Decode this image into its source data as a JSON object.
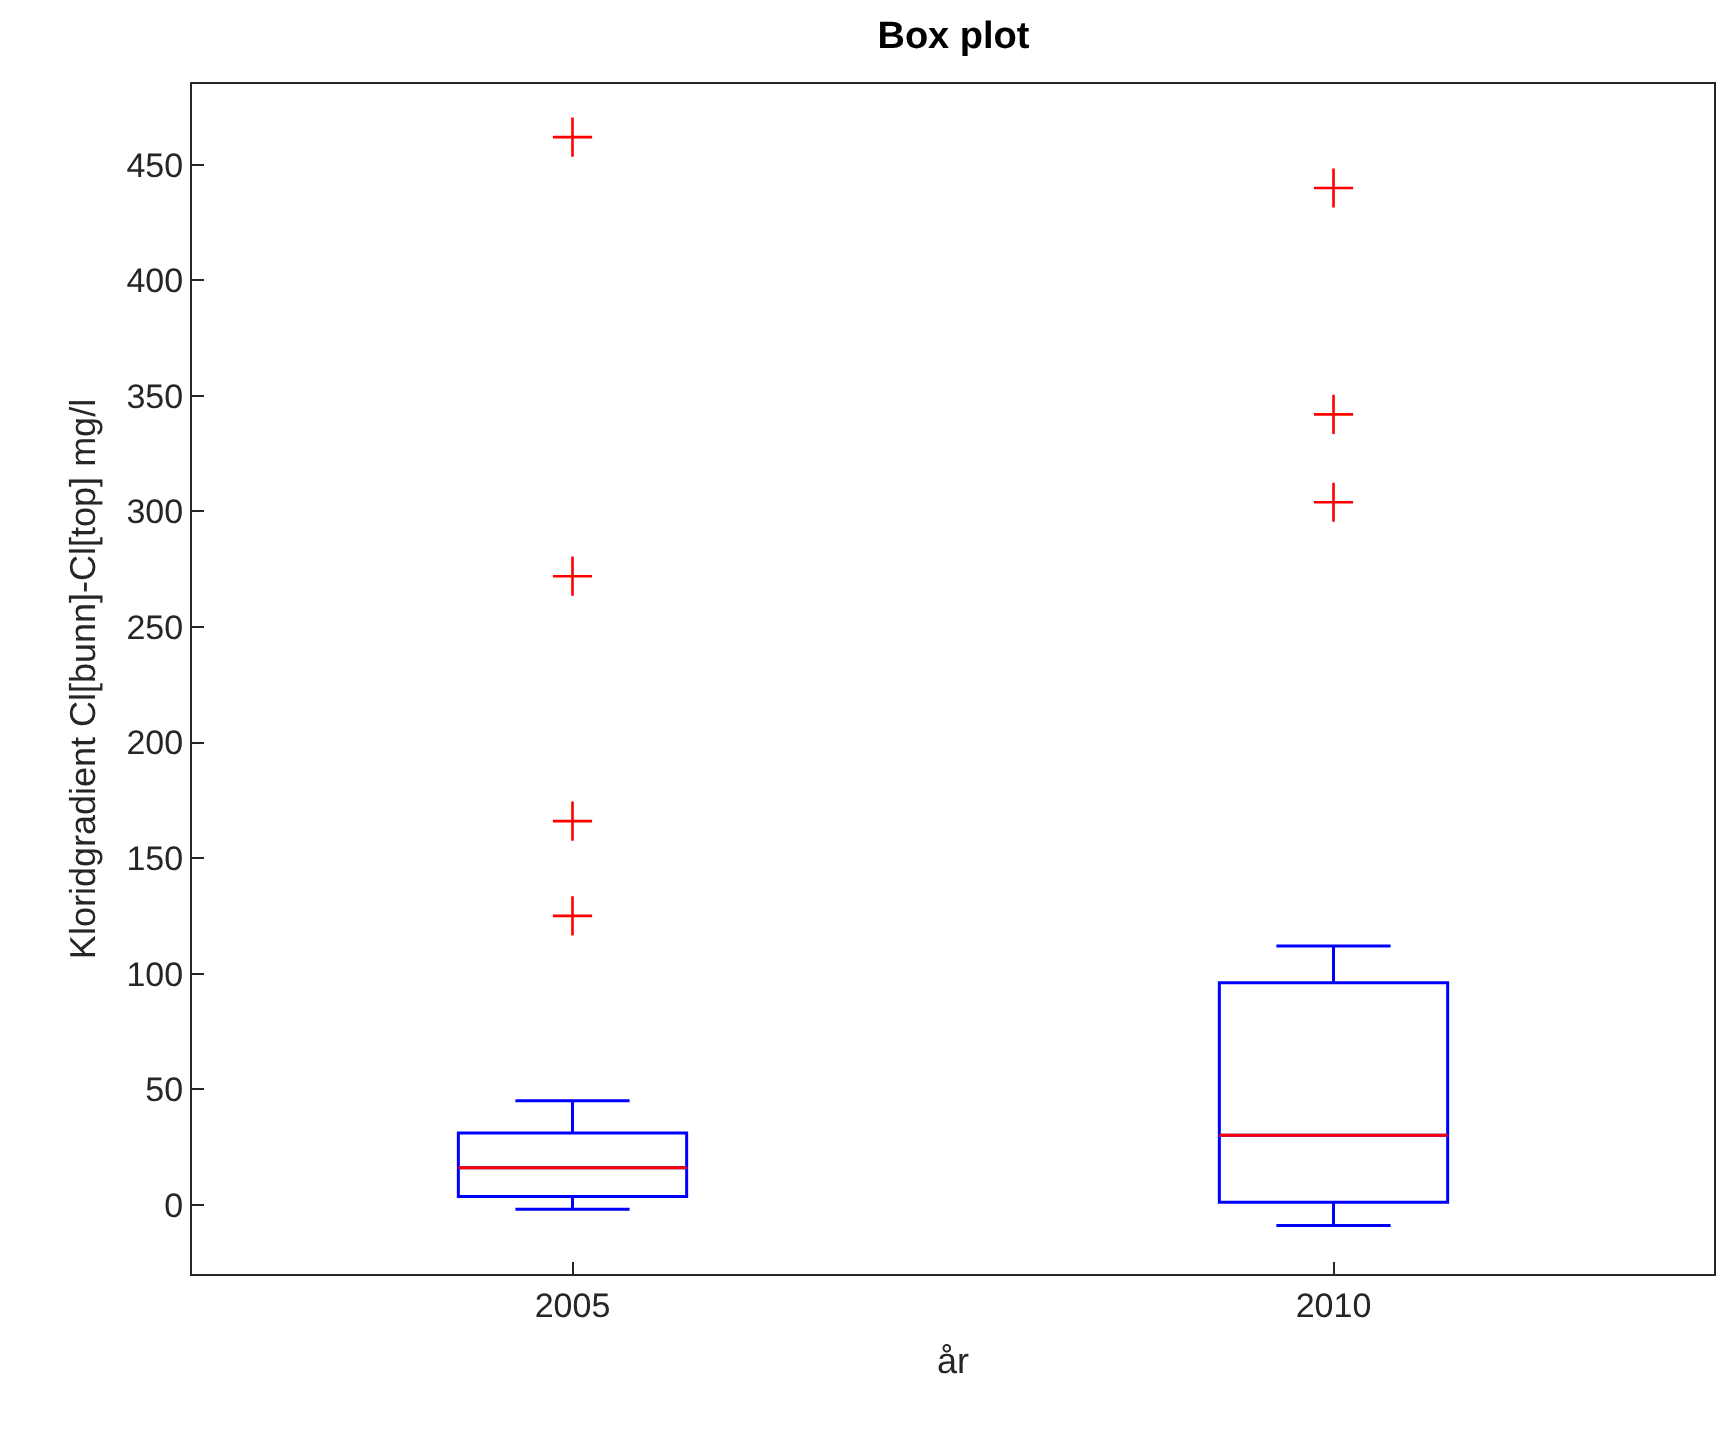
{
  "chart_data": {
    "type": "box",
    "title": "Box plot",
    "xlabel": "år",
    "ylabel": "Kloridgradient Cl[bunn]-Cl[top] mg/l",
    "categories": [
      "2005",
      "2010"
    ],
    "color": "#0000ff",
    "marker": "cross",
    "grid": false,
    "boxes": [
      {
        "low": -2,
        "q1": 3.5,
        "median": 16,
        "q3": 31,
        "high": 45,
        "outliers": [
          462,
          272,
          166,
          125
        ]
      },
      {
        "low": -9,
        "q1": 1,
        "median": 30,
        "q3": 96,
        "high": 112,
        "outliers": [
          440,
          342,
          304
        ]
      }
    ],
    "ylim": [
      -30,
      485
    ],
    "yticks": [
      0,
      50,
      100,
      150,
      200,
      250,
      300,
      350,
      400,
      450
    ]
  }
}
